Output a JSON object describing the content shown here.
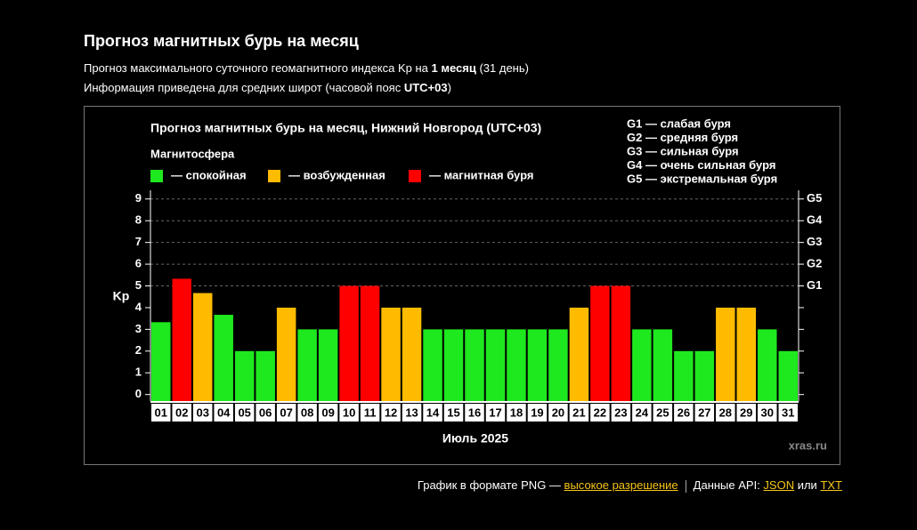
{
  "header": {
    "title": "Прогноз магнитных бурь на месяц",
    "line1": [
      "Прогноз максимального суточного геомагнитного индекса Kp на ",
      "1 месяц",
      " (31 день)"
    ],
    "line2": [
      "Информация приведена для средних широт (часовой пояс ",
      "UTC+03",
      ")"
    ]
  },
  "chart_data": {
    "type": "bar",
    "title": "Прогноз магнитных бурь на месяц, Нижний Новгород (UTC+03)",
    "legend_title": "Магнитосфера",
    "legend": [
      {
        "label": "— спокойная",
        "color": "#1ee81e"
      },
      {
        "label": "— возбужденная",
        "color": "#ffbb00"
      },
      {
        "label": "— магнитная буря",
        "color": "#ff0000"
      }
    ],
    "scale_notes": [
      "G1 — слабая буря",
      "G2 — средняя буря",
      "G3 — сильная буря",
      "G4 — очень сильная буря",
      "G5 — экстремальная буря"
    ],
    "ylabel": "Kp",
    "xlabel": "Июль 2025",
    "watermark": "xras.ru",
    "categories": [
      "01",
      "02",
      "03",
      "04",
      "05",
      "06",
      "07",
      "08",
      "09",
      "10",
      "11",
      "12",
      "13",
      "14",
      "15",
      "16",
      "17",
      "18",
      "19",
      "20",
      "21",
      "22",
      "23",
      "24",
      "25",
      "26",
      "27",
      "28",
      "29",
      "30",
      "31"
    ],
    "values": [
      3.33,
      5.33,
      4.67,
      3.67,
      2,
      2,
      4,
      3,
      3,
      5,
      5,
      4,
      4,
      3,
      3,
      3,
      3,
      3,
      3,
      3,
      4,
      5,
      5,
      3,
      3,
      2,
      2,
      4,
      4,
      3,
      2
    ],
    "bar_colors": [
      "#1ee81e",
      "#ff0000",
      "#ffbb00",
      "#1ee81e",
      "#1ee81e",
      "#1ee81e",
      "#ffbb00",
      "#1ee81e",
      "#1ee81e",
      "#ff0000",
      "#ff0000",
      "#ffbb00",
      "#ffbb00",
      "#1ee81e",
      "#1ee81e",
      "#1ee81e",
      "#1ee81e",
      "#1ee81e",
      "#1ee81e",
      "#1ee81e",
      "#ffbb00",
      "#ff0000",
      "#ff0000",
      "#1ee81e",
      "#1ee81e",
      "#1ee81e",
      "#1ee81e",
      "#ffbb00",
      "#ffbb00",
      "#1ee81e",
      "#1ee81e"
    ],
    "ylim": [
      -0.3,
      9.4
    ],
    "yticks": [
      0,
      1,
      2,
      3,
      4,
      5,
      6,
      7,
      8,
      9
    ],
    "y2lim": [
      -0.3,
      9.4
    ],
    "y2ticks": [
      {
        "value": 5,
        "label": "G1"
      },
      {
        "value": 6,
        "label": "G2"
      },
      {
        "value": 7,
        "label": "G3"
      },
      {
        "value": 8,
        "label": "G4"
      },
      {
        "value": 9,
        "label": "G5"
      }
    ],
    "grid": true
  },
  "footer": {
    "png_text": "График в формате PNG — ",
    "png_link": "высокое разрешение",
    "api_text": "Данные API: ",
    "json": "JSON",
    "or": " или ",
    "txt": "TXT"
  }
}
